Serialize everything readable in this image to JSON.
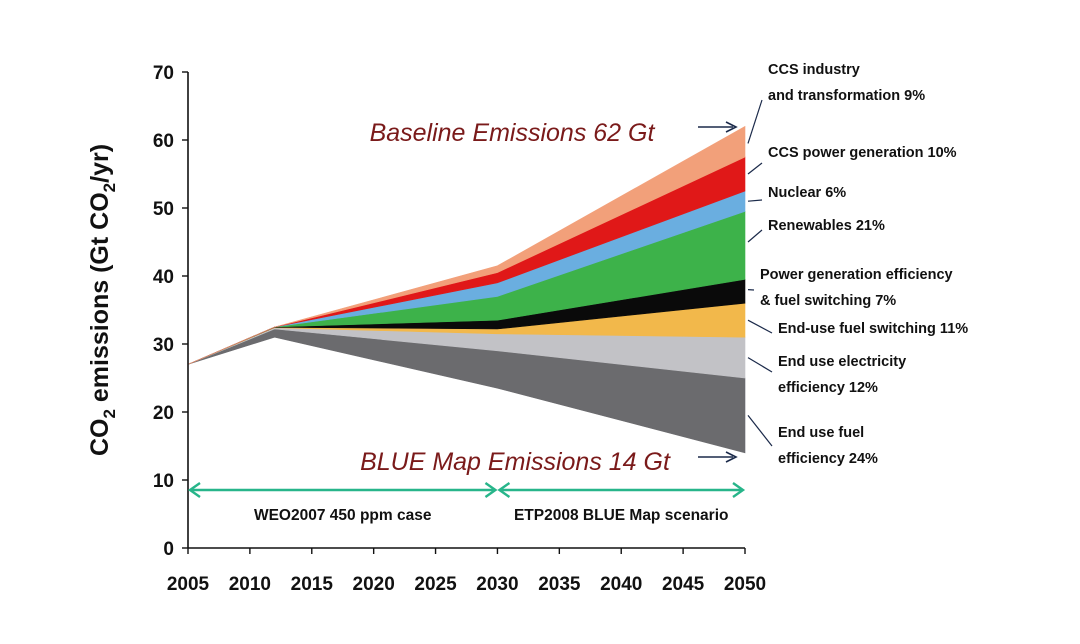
{
  "chart_data": {
    "type": "area",
    "ylabel": {
      "prefix": "CO",
      "sub": "2",
      "mid": " emissions (Gt CO",
      "sub2": "2",
      "suffix": "/yr)"
    },
    "xlabel": "",
    "x_ticks": [
      2005,
      2010,
      2015,
      2020,
      2025,
      2030,
      2035,
      2040,
      2045,
      2050
    ],
    "y_ticks": [
      0,
      10,
      20,
      30,
      40,
      50,
      60,
      70
    ],
    "xlim": [
      2005,
      2050
    ],
    "ylim": [
      0,
      70
    ],
    "x": [
      2005,
      2012,
      2030,
      2050
    ],
    "baseline": [
      27,
      32.5,
      41.5,
      62
    ],
    "blue_map": [
      27,
      31,
      23.5,
      14
    ],
    "series": [
      {
        "name": "End use fuel efficiency 24%",
        "color": "#6b6b6e",
        "lower": [
          27,
          31,
          23.5,
          14
        ],
        "upper": [
          27,
          32.2,
          29,
          25
        ]
      },
      {
        "name": "End use electricity efficiency 12%",
        "color": "#c2c2c6",
        "lower": [
          27,
          32.2,
          29,
          25
        ],
        "upper": [
          27,
          32.4,
          31.5,
          31
        ]
      },
      {
        "name": "End-use fuel switching 11%",
        "color": "#f2b84b",
        "lower": [
          27,
          32.4,
          31.5,
          31
        ],
        "upper": [
          27,
          32.45,
          32.2,
          36
        ]
      },
      {
        "name": "Power generation efficiency & fuel switching 7%",
        "color": "#0a0a0a",
        "lower": [
          27,
          32.45,
          32.2,
          36
        ],
        "upper": [
          27,
          32.5,
          33.5,
          39.5
        ]
      },
      {
        "name": "Renewables 21%",
        "color": "#3db24a",
        "lower": [
          27,
          32.5,
          33.5,
          39.5
        ],
        "upper": [
          27,
          32.5,
          37,
          49.5
        ]
      },
      {
        "name": "Nuclear 6%",
        "color": "#6aaee0",
        "lower": [
          27,
          32.5,
          37,
          49.5
        ],
        "upper": [
          27,
          32.5,
          39,
          52.5
        ]
      },
      {
        "name": "CCS power generation 10%",
        "color": "#e01818",
        "lower": [
          27,
          32.5,
          39,
          52.5
        ],
        "upper": [
          27,
          32.5,
          40.5,
          57.5
        ]
      },
      {
        "name": "CCS industry and transformation 9%",
        "color": "#f2a07a",
        "lower": [
          27,
          32.5,
          40.5,
          57.5
        ],
        "upper": [
          27,
          32.5,
          41.5,
          62
        ]
      }
    ],
    "segment_labels": [
      {
        "lines": [
          "CCS industry",
          "and transformation 9%"
        ],
        "arrow_to": [
          2050,
          59.5
        ]
      },
      {
        "lines": [
          "CCS power generation 10%"
        ],
        "arrow_to": [
          2050,
          55
        ]
      },
      {
        "lines": [
          "Nuclear 6%"
        ],
        "arrow_to": [
          2050,
          51
        ]
      },
      {
        "lines": [
          "Renewables 21%"
        ],
        "arrow_to": [
          2050,
          45
        ]
      },
      {
        "lines": [
          "Power generation efficiency",
          "& fuel switching 7%"
        ],
        "arrow_to": [
          2050,
          38
        ]
      },
      {
        "lines": [
          "End-use fuel switching 11%"
        ],
        "arrow_to": [
          2050,
          33.5
        ]
      },
      {
        "lines": [
          "End use electricity",
          "efficiency 12%"
        ],
        "arrow_to": [
          2050,
          28
        ]
      },
      {
        "lines": [
          "End use fuel",
          "efficiency 24%"
        ],
        "arrow_to": [
          2050,
          19.5
        ]
      }
    ],
    "callouts": {
      "baseline": "Baseline Emissions 62 Gt",
      "blue": "BLUE Map Emissions 14 Gt"
    },
    "periods": [
      {
        "label": "WEO2007 450 ppm case",
        "from": 2005,
        "to": 2030
      },
      {
        "label": "ETP2008 BLUE Map scenario",
        "from": 2030,
        "to": 2050
      }
    ],
    "colors": {
      "arrow": "#27b58a",
      "callout": "#7a1a1a"
    }
  }
}
